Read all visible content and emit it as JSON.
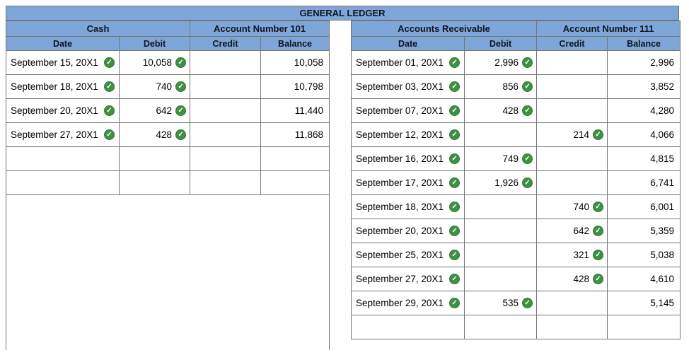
{
  "title": "GENERAL LEDGER",
  "colors": {
    "header_blue": "#7EA6D9",
    "check_green": "#3E9142",
    "border_gray": "#767676"
  },
  "check_icon": {
    "name": "check-circle-icon",
    "glyph": "✓"
  },
  "accounts": [
    {
      "name": "Cash",
      "account_number_label": "Account Number 101",
      "columns": [
        "Date",
        "Debit",
        "Credit",
        "Balance"
      ],
      "rows": [
        {
          "date": "September 15, 20X1",
          "debit": "10,058",
          "credit": "",
          "balance": "10,058"
        },
        {
          "date": "September 18, 20X1",
          "debit": "740",
          "credit": "",
          "balance": "10,798"
        },
        {
          "date": "September 20, 20X1",
          "debit": "642",
          "credit": "",
          "balance": "11,440"
        },
        {
          "date": "September 27, 20X1",
          "debit": "428",
          "credit": "",
          "balance": "11,868"
        },
        {
          "date": "",
          "debit": "",
          "credit": "",
          "balance": ""
        },
        {
          "date": "",
          "debit": "",
          "credit": "",
          "balance": ""
        }
      ]
    },
    {
      "name": "Accounts Receivable",
      "account_number_label": "Account Number 111",
      "columns": [
        "Date",
        "Debit",
        "Credit",
        "Balance"
      ],
      "rows": [
        {
          "date": "September 01, 20X1",
          "debit": "2,996",
          "credit": "",
          "balance": "2,996"
        },
        {
          "date": "September 03, 20X1",
          "debit": "856",
          "credit": "",
          "balance": "3,852"
        },
        {
          "date": "September 07, 20X1",
          "debit": "428",
          "credit": "",
          "balance": "4,280"
        },
        {
          "date": "September 12, 20X1",
          "debit": "",
          "credit": "214",
          "balance": "4,066"
        },
        {
          "date": "September 16, 20X1",
          "debit": "749",
          "credit": "",
          "balance": "4,815"
        },
        {
          "date": "September 17, 20X1",
          "debit": "1,926",
          "credit": "",
          "balance": "6,741"
        },
        {
          "date": "September 18, 20X1",
          "debit": "",
          "credit": "740",
          "balance": "6,001"
        },
        {
          "date": "September 20, 20X1",
          "debit": "",
          "credit": "642",
          "balance": "5,359"
        },
        {
          "date": "September 25, 20X1",
          "debit": "",
          "credit": "321",
          "balance": "5,038"
        },
        {
          "date": "September 27, 20X1",
          "debit": "",
          "credit": "428",
          "balance": "4,610"
        },
        {
          "date": "September 29, 20X1",
          "debit": "535",
          "credit": "",
          "balance": "5,145"
        },
        {
          "date": "",
          "debit": "",
          "credit": "",
          "balance": ""
        }
      ]
    }
  ]
}
